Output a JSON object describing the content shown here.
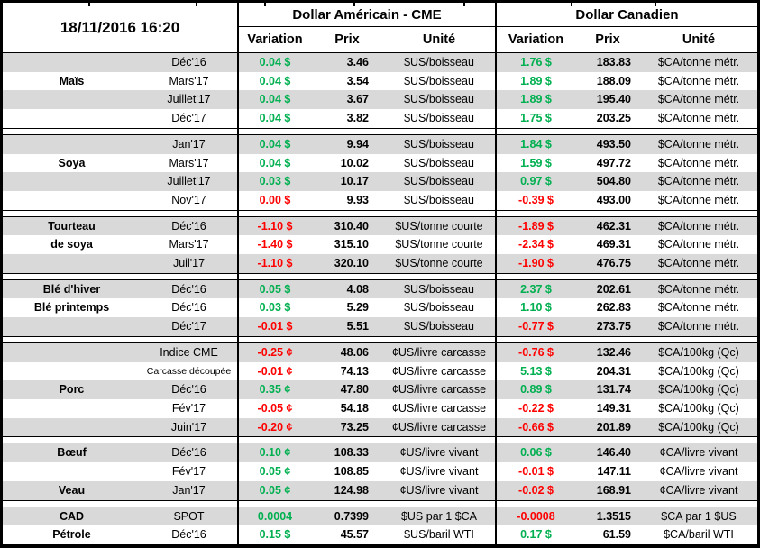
{
  "header": {
    "timestamp": "18/11/2016 16:20",
    "us_title": "Dollar Américain - CME",
    "ca_title": "Dollar Canadien",
    "col_variation": "Variation",
    "col_prix": "Prix",
    "col_unite": "Unité"
  },
  "colors": {
    "positive_green": "#00B050",
    "negative_red": "#FF0000",
    "row_stripe_gray": "#D9D9D9"
  },
  "sections": [
    {
      "commodity": "Maïs",
      "rows": [
        {
          "label": "",
          "month": "Déc'16",
          "usv": "0.04 $",
          "usc": "g",
          "usp": "3.46",
          "usu": "$US/boisseau",
          "cav": "1.76 $",
          "cac": "g",
          "cap": "183.83",
          "cau": "$CA/tonne métr."
        },
        {
          "label": "Maïs",
          "month": "Mars'17",
          "usv": "0.04 $",
          "usc": "g",
          "usp": "3.54",
          "usu": "$US/boisseau",
          "cav": "1.89 $",
          "cac": "g",
          "cap": "188.09",
          "cau": "$CA/tonne métr."
        },
        {
          "label": "",
          "month": "Juillet'17",
          "usv": "0.04 $",
          "usc": "g",
          "usp": "3.67",
          "usu": "$US/boisseau",
          "cav": "1.89 $",
          "cac": "g",
          "cap": "195.40",
          "cau": "$CA/tonne métr."
        },
        {
          "label": "",
          "month": "Déc'17",
          "usv": "0.04 $",
          "usc": "g",
          "usp": "3.82",
          "usu": "$US/boisseau",
          "cav": "1.75 $",
          "cac": "g",
          "cap": "203.25",
          "cau": "$CA/tonne métr."
        }
      ]
    },
    {
      "commodity": "Soya",
      "rows": [
        {
          "label": "",
          "month": "Jan'17",
          "usv": "0.04 $",
          "usc": "g",
          "usp": "9.94",
          "usu": "$US/boisseau",
          "cav": "1.84 $",
          "cac": "g",
          "cap": "493.50",
          "cau": "$CA/tonne métr."
        },
        {
          "label": "Soya",
          "month": "Mars'17",
          "usv": "0.04 $",
          "usc": "g",
          "usp": "10.02",
          "usu": "$US/boisseau",
          "cav": "1.59 $",
          "cac": "g",
          "cap": "497.72",
          "cau": "$CA/tonne métr."
        },
        {
          "label": "",
          "month": "Juillet'17",
          "usv": "0.03 $",
          "usc": "g",
          "usp": "10.17",
          "usu": "$US/boisseau",
          "cav": "0.97 $",
          "cac": "g",
          "cap": "504.80",
          "cau": "$CA/tonne métr."
        },
        {
          "label": "",
          "month": "Nov'17",
          "usv": "0.00 $",
          "usc": "r",
          "usp": "9.93",
          "usu": "$US/boisseau",
          "cav": "-0.39 $",
          "cac": "r",
          "cap": "493.00",
          "cau": "$CA/tonne métr."
        }
      ]
    },
    {
      "commodity": "Tourteau de soya",
      "rows": [
        {
          "label": "Tourteau",
          "month": "Déc'16",
          "usv": "-1.10 $",
          "usc": "r",
          "usp": "310.40",
          "usu": "$US/tonne courte",
          "cav": "-1.89 $",
          "cac": "r",
          "cap": "462.31",
          "cau": "$CA/tonne métr."
        },
        {
          "label": "de soya",
          "month": "Mars'17",
          "usv": "-1.40 $",
          "usc": "r",
          "usp": "315.10",
          "usu": "$US/tonne courte",
          "cav": "-2.34 $",
          "cac": "r",
          "cap": "469.31",
          "cau": "$CA/tonne métr."
        },
        {
          "label": "",
          "month": "Juil'17",
          "usv": "-1.10 $",
          "usc": "r",
          "usp": "320.10",
          "usu": "$US/tonne courte",
          "cav": "-1.90 $",
          "cac": "r",
          "cap": "476.75",
          "cau": "$CA/tonne métr."
        }
      ]
    },
    {
      "commodity": "Blé",
      "rows": [
        {
          "label": "Blé d'hiver",
          "month": "Déc'16",
          "usv": "0.05 $",
          "usc": "g",
          "usp": "4.08",
          "usu": "$US/boisseau",
          "cav": "2.37 $",
          "cac": "g",
          "cap": "202.61",
          "cau": "$CA/tonne métr."
        },
        {
          "label": "Blé printemps",
          "month": "Déc'16",
          "usv": "0.03 $",
          "usc": "g",
          "usp": "5.29",
          "usu": "$US/boisseau",
          "cav": "1.10 $",
          "cac": "g",
          "cap": "262.83",
          "cau": "$CA/tonne métr."
        },
        {
          "label": "",
          "month": "Déc'17",
          "usv": "-0.01 $",
          "usc": "r",
          "usp": "5.51",
          "usu": "$US/boisseau",
          "cav": "-0.77 $",
          "cac": "r",
          "cap": "273.75",
          "cau": "$CA/tonne métr."
        }
      ]
    },
    {
      "commodity": "Porc",
      "rows": [
        {
          "label": "",
          "month": "Indice CME",
          "usv": "-0.25 ¢",
          "usc": "r",
          "usp": "48.06",
          "usu": "¢US/livre carcasse",
          "cav": "-0.76 $",
          "cac": "r",
          "cap": "132.46",
          "cau": "$CA/100kg (Qc)"
        },
        {
          "label": "",
          "month": "Carcasse découpée",
          "small": true,
          "usv": "-0.01 ¢",
          "usc": "r",
          "usp": "74.13",
          "usu": "¢US/livre carcasse",
          "cav": "5.13 $",
          "cac": "g",
          "cap": "204.31",
          "cau": "$CA/100kg (Qc)"
        },
        {
          "label": "Porc",
          "month": "Déc'16",
          "usv": "0.35 ¢",
          "usc": "g",
          "usp": "47.80",
          "usu": "¢US/livre carcasse",
          "cav": "0.89 $",
          "cac": "g",
          "cap": "131.74",
          "cau": "$CA/100kg (Qc)"
        },
        {
          "label": "",
          "month": "Fév'17",
          "usv": "-0.05 ¢",
          "usc": "r",
          "usp": "54.18",
          "usu": "¢US/livre carcasse",
          "cav": "-0.22 $",
          "cac": "r",
          "cap": "149.31",
          "cau": "$CA/100kg (Qc)"
        },
        {
          "label": "",
          "month": "Juin'17",
          "usv": "-0.20 ¢",
          "usc": "r",
          "usp": "73.25",
          "usu": "¢US/livre carcasse",
          "cav": "-0.66 $",
          "cac": "r",
          "cap": "201.89",
          "cau": "$CA/100kg (Qc)"
        }
      ]
    },
    {
      "commodity": "Bœuf / Veau",
      "rows": [
        {
          "label": "Bœuf",
          "month": "Déc'16",
          "usv": "0.10 ¢",
          "usc": "g",
          "usp": "108.33",
          "usu": "¢US/livre vivant",
          "cav": "0.06 $",
          "cac": "g",
          "cap": "146.40",
          "cau": "¢CA/livre vivant"
        },
        {
          "label": "",
          "month": "Fév'17",
          "usv": "0.05 ¢",
          "usc": "g",
          "usp": "108.85",
          "usu": "¢US/livre vivant",
          "cav": "-0.01 $",
          "cac": "r",
          "cap": "147.11",
          "cau": "¢CA/livre vivant"
        },
        {
          "label": "Veau",
          "month": "Jan'17",
          "usv": "0.05 ¢",
          "usc": "g",
          "usp": "124.98",
          "usu": "¢US/livre vivant",
          "cav": "-0.02 $",
          "cac": "r",
          "cap": "168.91",
          "cau": "¢CA/livre vivant"
        }
      ]
    },
    {
      "commodity": "CAD / Pétrole",
      "rows": [
        {
          "label": "CAD",
          "month": "SPOT",
          "usv": "0.0004",
          "usc": "g",
          "usp": "0.7399",
          "usu": "$US par 1 $CA",
          "cav": "-0.0008",
          "cac": "r",
          "cap": "1.3515",
          "cau": "$CA par 1 $US"
        },
        {
          "label": "Pétrole",
          "month": "Déc'16",
          "usv": "0.15 $",
          "usc": "g",
          "usp": "45.57",
          "usu": "$US/baril WTI",
          "cav": "0.17 $",
          "cac": "g",
          "cap": "61.59",
          "cau": "$CA/baril WTI"
        }
      ]
    }
  ]
}
